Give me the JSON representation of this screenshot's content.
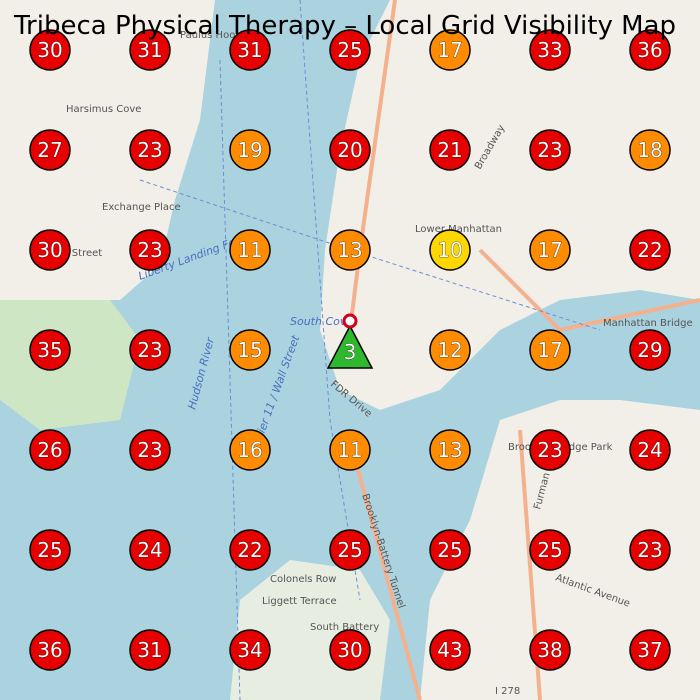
{
  "title": "Tribeca Physical Therapy – Local Grid Visibility Map",
  "grid": {
    "rows": [
      [
        30,
        31,
        31,
        25,
        17,
        33,
        36
      ],
      [
        27,
        23,
        19,
        20,
        21,
        23,
        18
      ],
      [
        30,
        23,
        11,
        13,
        10,
        17,
        22
      ],
      [
        35,
        23,
        15,
        3,
        12,
        17,
        29
      ],
      [
        26,
        23,
        16,
        11,
        13,
        23,
        24
      ],
      [
        25,
        24,
        22,
        25,
        25,
        25,
        23
      ],
      [
        36,
        31,
        34,
        30,
        43,
        38,
        37
      ]
    ]
  },
  "map_labels": [
    "Harsimus Cove",
    "Exchange Place",
    "Lower Manhattan",
    "Manhattan Bridge",
    "Colonels Row",
    "Liggett Terrace",
    "South Battery",
    "Hudson River",
    "Liberty Landing Ferry",
    "FDR Drive",
    "Brooklyn-Battery Tunnel",
    "Atlantic Avenue",
    "Broadway",
    "Essex Street",
    "Paulus Hook",
    "South Cove",
    "Pier 11 / Wall Street",
    "I 278",
    "Furman Street",
    "Brooklyn Bridge Park"
  ]
}
